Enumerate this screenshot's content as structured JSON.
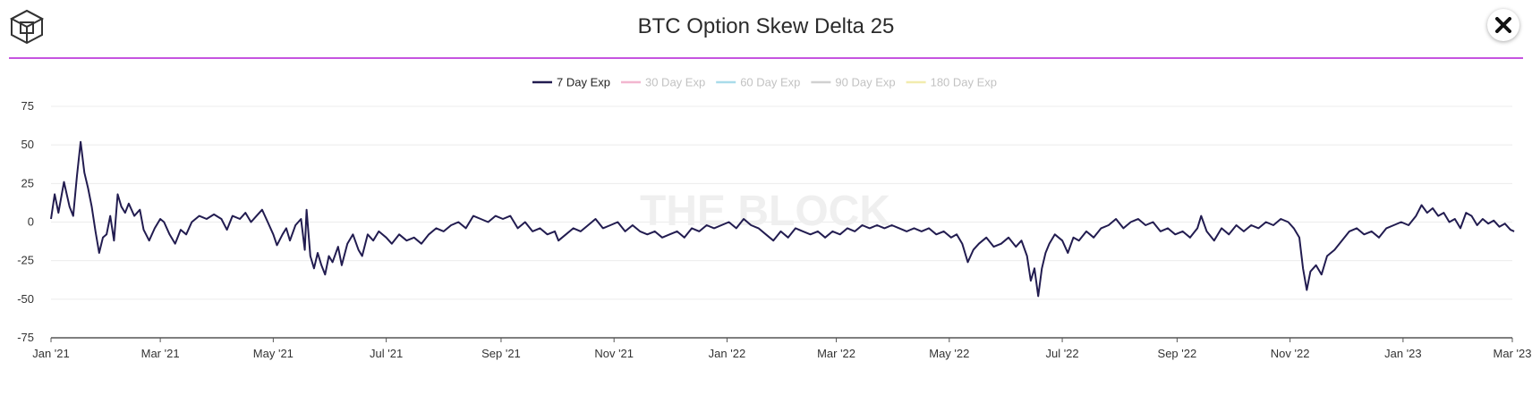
{
  "header": {
    "title": "BTC Option Skew Delta 25",
    "logo_icon": "cube-logo-icon",
    "close_icon": "close-icon"
  },
  "watermark": "THE BLOCK",
  "chart_data": {
    "type": "line",
    "title": "BTC Option Skew Delta 25",
    "xlabel": "",
    "ylabel": "",
    "ylim": [
      -75,
      75
    ],
    "yticks": [
      75,
      50,
      25,
      0,
      -25,
      -50,
      -75
    ],
    "xlim": [
      "2021-01-01",
      "2023-03-01"
    ],
    "xticks": [
      {
        "date": "2021-01-01",
        "label": "Jan '21"
      },
      {
        "date": "2021-03-01",
        "label": "Mar '21"
      },
      {
        "date": "2021-05-01",
        "label": "May '21"
      },
      {
        "date": "2021-07-01",
        "label": "Jul '21"
      },
      {
        "date": "2021-09-01",
        "label": "Sep '21"
      },
      {
        "date": "2021-11-01",
        "label": "Nov '21"
      },
      {
        "date": "2022-01-01",
        "label": "Jan '22"
      },
      {
        "date": "2022-03-01",
        "label": "Mar '22"
      },
      {
        "date": "2022-05-01",
        "label": "May '22"
      },
      {
        "date": "2022-07-01",
        "label": "Jul '22"
      },
      {
        "date": "2022-09-01",
        "label": "Sep '22"
      },
      {
        "date": "2022-11-01",
        "label": "Nov '22"
      },
      {
        "date": "2023-01-01",
        "label": "Jan '23"
      },
      {
        "date": "2023-03-01",
        "label": "Mar '23"
      }
    ],
    "grid": true,
    "legend_position": "top-center",
    "series": [
      {
        "name": "7 Day Exp",
        "color": "#221c50",
        "active": true,
        "points": [
          [
            "2021-01-01",
            2
          ],
          [
            "2021-01-03",
            18
          ],
          [
            "2021-01-05",
            6
          ],
          [
            "2021-01-08",
            26
          ],
          [
            "2021-01-11",
            10
          ],
          [
            "2021-01-13",
            4
          ],
          [
            "2021-01-15",
            30
          ],
          [
            "2021-01-17",
            52
          ],
          [
            "2021-01-19",
            32
          ],
          [
            "2021-01-21",
            22
          ],
          [
            "2021-01-23",
            10
          ],
          [
            "2021-01-25",
            -6
          ],
          [
            "2021-01-27",
            -20
          ],
          [
            "2021-01-29",
            -10
          ],
          [
            "2021-01-31",
            -8
          ],
          [
            "2021-02-02",
            4
          ],
          [
            "2021-02-04",
            -12
          ],
          [
            "2021-02-06",
            18
          ],
          [
            "2021-02-08",
            10
          ],
          [
            "2021-02-10",
            6
          ],
          [
            "2021-02-12",
            12
          ],
          [
            "2021-02-15",
            4
          ],
          [
            "2021-02-18",
            8
          ],
          [
            "2021-02-20",
            -5
          ],
          [
            "2021-02-23",
            -12
          ],
          [
            "2021-02-26",
            -4
          ],
          [
            "2021-03-01",
            2
          ],
          [
            "2021-03-03",
            0
          ],
          [
            "2021-03-06",
            -8
          ],
          [
            "2021-03-09",
            -14
          ],
          [
            "2021-03-12",
            -5
          ],
          [
            "2021-03-15",
            -8
          ],
          [
            "2021-03-18",
            0
          ],
          [
            "2021-03-22",
            4
          ],
          [
            "2021-03-26",
            2
          ],
          [
            "2021-03-30",
            5
          ],
          [
            "2021-04-03",
            2
          ],
          [
            "2021-04-06",
            -5
          ],
          [
            "2021-04-09",
            4
          ],
          [
            "2021-04-13",
            2
          ],
          [
            "2021-04-16",
            6
          ],
          [
            "2021-04-19",
            0
          ],
          [
            "2021-04-22",
            4
          ],
          [
            "2021-04-25",
            8
          ],
          [
            "2021-04-28",
            0
          ],
          [
            "2021-05-01",
            -8
          ],
          [
            "2021-05-03",
            -15
          ],
          [
            "2021-05-06",
            -8
          ],
          [
            "2021-05-08",
            -4
          ],
          [
            "2021-05-10",
            -12
          ],
          [
            "2021-05-13",
            -2
          ],
          [
            "2021-05-16",
            2
          ],
          [
            "2021-05-18",
            -18
          ],
          [
            "2021-05-19",
            8
          ],
          [
            "2021-05-21",
            -22
          ],
          [
            "2021-05-23",
            -30
          ],
          [
            "2021-05-25",
            -20
          ],
          [
            "2021-05-27",
            -28
          ],
          [
            "2021-05-29",
            -34
          ],
          [
            "2021-05-31",
            -22
          ],
          [
            "2021-06-02",
            -26
          ],
          [
            "2021-06-05",
            -16
          ],
          [
            "2021-06-07",
            -28
          ],
          [
            "2021-06-10",
            -14
          ],
          [
            "2021-06-13",
            -8
          ],
          [
            "2021-06-16",
            -18
          ],
          [
            "2021-06-18",
            -22
          ],
          [
            "2021-06-21",
            -8
          ],
          [
            "2021-06-24",
            -12
          ],
          [
            "2021-06-27",
            -6
          ],
          [
            "2021-07-01",
            -10
          ],
          [
            "2021-07-04",
            -14
          ],
          [
            "2021-07-08",
            -8
          ],
          [
            "2021-07-12",
            -12
          ],
          [
            "2021-07-16",
            -10
          ],
          [
            "2021-07-20",
            -14
          ],
          [
            "2021-07-24",
            -8
          ],
          [
            "2021-07-28",
            -4
          ],
          [
            "2021-08-01",
            -6
          ],
          [
            "2021-08-05",
            -2
          ],
          [
            "2021-08-09",
            0
          ],
          [
            "2021-08-13",
            -4
          ],
          [
            "2021-08-17",
            4
          ],
          [
            "2021-08-21",
            2
          ],
          [
            "2021-08-25",
            0
          ],
          [
            "2021-08-29",
            4
          ],
          [
            "2021-09-02",
            2
          ],
          [
            "2021-09-06",
            4
          ],
          [
            "2021-09-10",
            -4
          ],
          [
            "2021-09-14",
            0
          ],
          [
            "2021-09-18",
            -6
          ],
          [
            "2021-09-22",
            -4
          ],
          [
            "2021-09-26",
            -8
          ],
          [
            "2021-09-30",
            -6
          ],
          [
            "2021-10-02",
            -12
          ],
          [
            "2021-10-06",
            -8
          ],
          [
            "2021-10-10",
            -4
          ],
          [
            "2021-10-14",
            -6
          ],
          [
            "2021-10-18",
            -2
          ],
          [
            "2021-10-22",
            2
          ],
          [
            "2021-10-26",
            -4
          ],
          [
            "2021-10-30",
            -2
          ],
          [
            "2021-11-03",
            0
          ],
          [
            "2021-11-07",
            -6
          ],
          [
            "2021-11-11",
            -2
          ],
          [
            "2021-11-15",
            -6
          ],
          [
            "2021-11-19",
            -8
          ],
          [
            "2021-11-23",
            -6
          ],
          [
            "2021-11-27",
            -10
          ],
          [
            "2021-12-01",
            -8
          ],
          [
            "2021-12-05",
            -6
          ],
          [
            "2021-12-09",
            -10
          ],
          [
            "2021-12-13",
            -4
          ],
          [
            "2021-12-17",
            -6
          ],
          [
            "2021-12-21",
            -2
          ],
          [
            "2021-12-25",
            -4
          ],
          [
            "2021-12-29",
            -2
          ],
          [
            "2022-01-02",
            0
          ],
          [
            "2022-01-06",
            -4
          ],
          [
            "2022-01-10",
            2
          ],
          [
            "2022-01-14",
            -2
          ],
          [
            "2022-01-18",
            -4
          ],
          [
            "2022-01-22",
            -8
          ],
          [
            "2022-01-26",
            -12
          ],
          [
            "2022-01-30",
            -6
          ],
          [
            "2022-02-03",
            -10
          ],
          [
            "2022-02-07",
            -4
          ],
          [
            "2022-02-11",
            -6
          ],
          [
            "2022-02-15",
            -8
          ],
          [
            "2022-02-19",
            -6
          ],
          [
            "2022-02-23",
            -10
          ],
          [
            "2022-02-27",
            -6
          ],
          [
            "2022-03-03",
            -8
          ],
          [
            "2022-03-07",
            -4
          ],
          [
            "2022-03-11",
            -6
          ],
          [
            "2022-03-15",
            -2
          ],
          [
            "2022-03-19",
            -4
          ],
          [
            "2022-03-23",
            -2
          ],
          [
            "2022-03-27",
            -4
          ],
          [
            "2022-03-31",
            -2
          ],
          [
            "2022-04-04",
            -4
          ],
          [
            "2022-04-08",
            -6
          ],
          [
            "2022-04-12",
            -4
          ],
          [
            "2022-04-16",
            -6
          ],
          [
            "2022-04-20",
            -4
          ],
          [
            "2022-04-24",
            -8
          ],
          [
            "2022-04-28",
            -6
          ],
          [
            "2022-05-02",
            -10
          ],
          [
            "2022-05-05",
            -8
          ],
          [
            "2022-05-08",
            -14
          ],
          [
            "2022-05-11",
            -26
          ],
          [
            "2022-05-14",
            -18
          ],
          [
            "2022-05-17",
            -14
          ],
          [
            "2022-05-21",
            -10
          ],
          [
            "2022-05-25",
            -16
          ],
          [
            "2022-05-29",
            -14
          ],
          [
            "2022-06-02",
            -10
          ],
          [
            "2022-06-06",
            -16
          ],
          [
            "2022-06-09",
            -12
          ],
          [
            "2022-06-12",
            -22
          ],
          [
            "2022-06-14",
            -38
          ],
          [
            "2022-06-16",
            -30
          ],
          [
            "2022-06-18",
            -48
          ],
          [
            "2022-06-20",
            -30
          ],
          [
            "2022-06-22",
            -20
          ],
          [
            "2022-06-24",
            -14
          ],
          [
            "2022-06-27",
            -8
          ],
          [
            "2022-07-01",
            -12
          ],
          [
            "2022-07-04",
            -20
          ],
          [
            "2022-07-07",
            -10
          ],
          [
            "2022-07-10",
            -12
          ],
          [
            "2022-07-14",
            -6
          ],
          [
            "2022-07-18",
            -10
          ],
          [
            "2022-07-22",
            -4
          ],
          [
            "2022-07-26",
            -2
          ],
          [
            "2022-07-30",
            2
          ],
          [
            "2022-08-03",
            -4
          ],
          [
            "2022-08-07",
            0
          ],
          [
            "2022-08-11",
            2
          ],
          [
            "2022-08-15",
            -2
          ],
          [
            "2022-08-19",
            0
          ],
          [
            "2022-08-23",
            -6
          ],
          [
            "2022-08-27",
            -4
          ],
          [
            "2022-08-31",
            -8
          ],
          [
            "2022-09-04",
            -6
          ],
          [
            "2022-09-08",
            -10
          ],
          [
            "2022-09-12",
            -4
          ],
          [
            "2022-09-14",
            4
          ],
          [
            "2022-09-17",
            -6
          ],
          [
            "2022-09-21",
            -12
          ],
          [
            "2022-09-25",
            -4
          ],
          [
            "2022-09-29",
            -8
          ],
          [
            "2022-10-03",
            -2
          ],
          [
            "2022-10-07",
            -6
          ],
          [
            "2022-10-11",
            -2
          ],
          [
            "2022-10-15",
            -4
          ],
          [
            "2022-10-19",
            0
          ],
          [
            "2022-10-23",
            -2
          ],
          [
            "2022-10-27",
            2
          ],
          [
            "2022-10-31",
            0
          ],
          [
            "2022-11-03",
            -4
          ],
          [
            "2022-11-06",
            -10
          ],
          [
            "2022-11-08",
            -30
          ],
          [
            "2022-11-10",
            -44
          ],
          [
            "2022-11-12",
            -32
          ],
          [
            "2022-11-15",
            -28
          ],
          [
            "2022-11-18",
            -34
          ],
          [
            "2022-11-21",
            -22
          ],
          [
            "2022-11-25",
            -18
          ],
          [
            "2022-11-29",
            -12
          ],
          [
            "2022-12-03",
            -6
          ],
          [
            "2022-12-07",
            -4
          ],
          [
            "2022-12-11",
            -8
          ],
          [
            "2022-12-15",
            -6
          ],
          [
            "2022-12-19",
            -10
          ],
          [
            "2022-12-23",
            -4
          ],
          [
            "2022-12-27",
            -2
          ],
          [
            "2022-12-31",
            0
          ],
          [
            "2023-01-04",
            -2
          ],
          [
            "2023-01-08",
            4
          ],
          [
            "2023-01-11",
            11
          ],
          [
            "2023-01-14",
            6
          ],
          [
            "2023-01-17",
            9
          ],
          [
            "2023-01-20",
            4
          ],
          [
            "2023-01-23",
            6
          ],
          [
            "2023-01-26",
            0
          ],
          [
            "2023-01-29",
            2
          ],
          [
            "2023-02-01",
            -4
          ],
          [
            "2023-02-04",
            6
          ],
          [
            "2023-02-07",
            4
          ],
          [
            "2023-02-10",
            -2
          ],
          [
            "2023-02-13",
            2
          ],
          [
            "2023-02-16",
            -1
          ],
          [
            "2023-02-19",
            1
          ],
          [
            "2023-02-22",
            -3
          ],
          [
            "2023-02-25",
            -1
          ],
          [
            "2023-02-28",
            -5
          ],
          [
            "2023-03-02",
            -6
          ]
        ]
      },
      {
        "name": "30 Day Exp",
        "color": "#f3b6cf",
        "active": false,
        "points": []
      },
      {
        "name": "60 Day Exp",
        "color": "#a9dcea",
        "active": false,
        "points": []
      },
      {
        "name": "90 Day Exp",
        "color": "#d0d0d0",
        "active": false,
        "points": []
      },
      {
        "name": "180 Day Exp",
        "color": "#f2ecae",
        "active": false,
        "points": []
      }
    ]
  }
}
